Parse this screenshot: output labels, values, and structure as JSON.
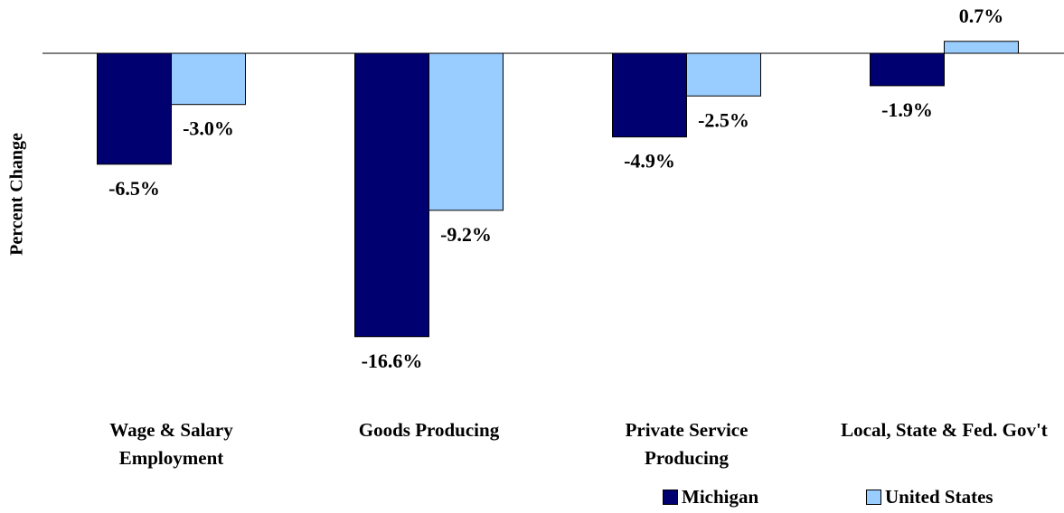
{
  "chart_data": {
    "type": "bar",
    "y_label": "Percent Change",
    "categories": [
      "Wage & Salary Employment",
      "Goods Producing",
      "Private Service Producing",
      "Local, State & Fed. Gov't"
    ],
    "series": [
      {
        "name": "Michigan",
        "color": "#000070",
        "values": [
          -6.5,
          -16.6,
          -4.9,
          -1.9
        ],
        "value_labels": [
          "-6.5%",
          "-16.6%",
          "-4.9%",
          "-1.9%"
        ]
      },
      {
        "name": "United States",
        "color": "#99ccff",
        "values": [
          -3.0,
          -9.2,
          -2.5,
          0.7
        ],
        "value_labels": [
          "-3.0%",
          "-9.2%",
          "-2.5%",
          "0.7%"
        ]
      }
    ],
    "legend": "bottom-right"
  }
}
